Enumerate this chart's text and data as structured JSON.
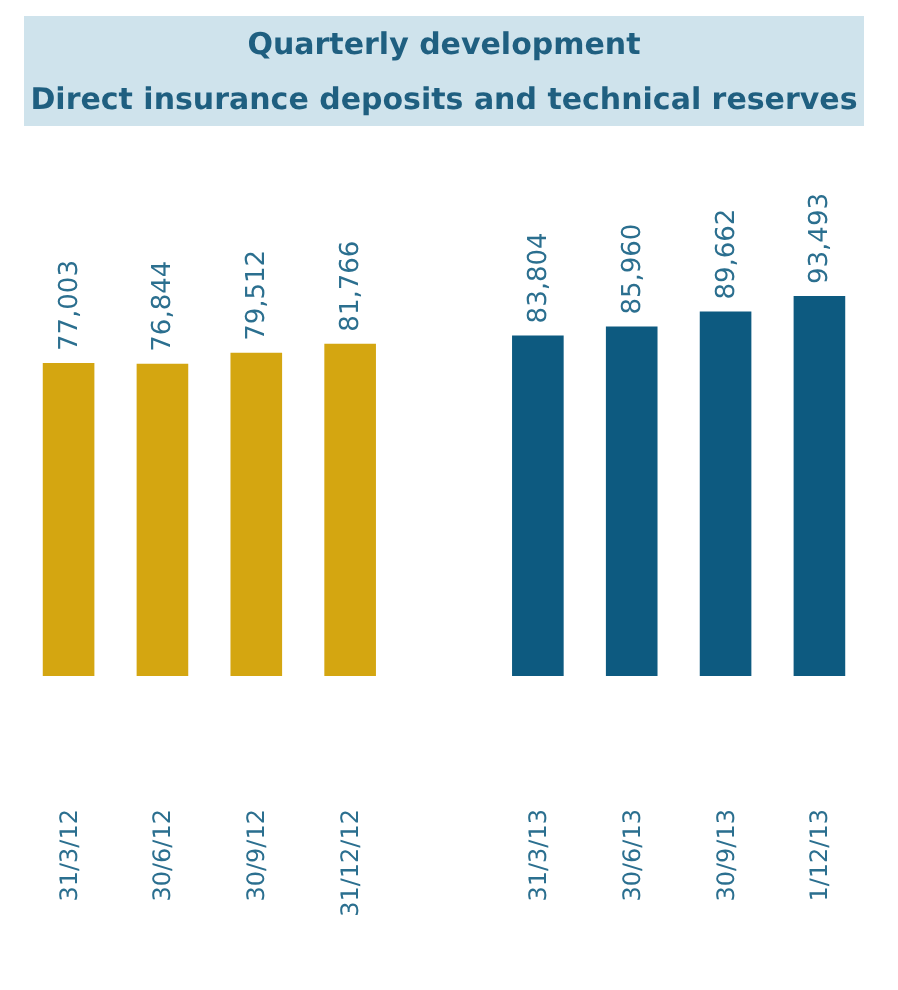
{
  "chart_data": {
    "type": "bar",
    "title": "Quarterly development",
    "subtitle": "Direct insurance deposits and technical reserves",
    "categories": [
      "31/3/12",
      "30/6/12",
      "30/9/12",
      "31/12/12",
      null,
      "31/3/13",
      "30/6/13",
      "30/9/13",
      "1/12/13"
    ],
    "values": [
      77003,
      76844,
      79512,
      81766,
      null,
      83804,
      85960,
      89662,
      93493
    ],
    "colors": [
      "#d4a611",
      "#d4a611",
      "#d4a611",
      "#d4a611",
      null,
      "#0d5a80",
      "#0d5a80",
      "#0d5a80",
      "#0d5a80"
    ],
    "value_labels": [
      "77,003",
      "76,844",
      "79,512",
      "81,766",
      null,
      "83,804",
      "85,960",
      "89,662",
      "93,493"
    ],
    "legend": false
  }
}
